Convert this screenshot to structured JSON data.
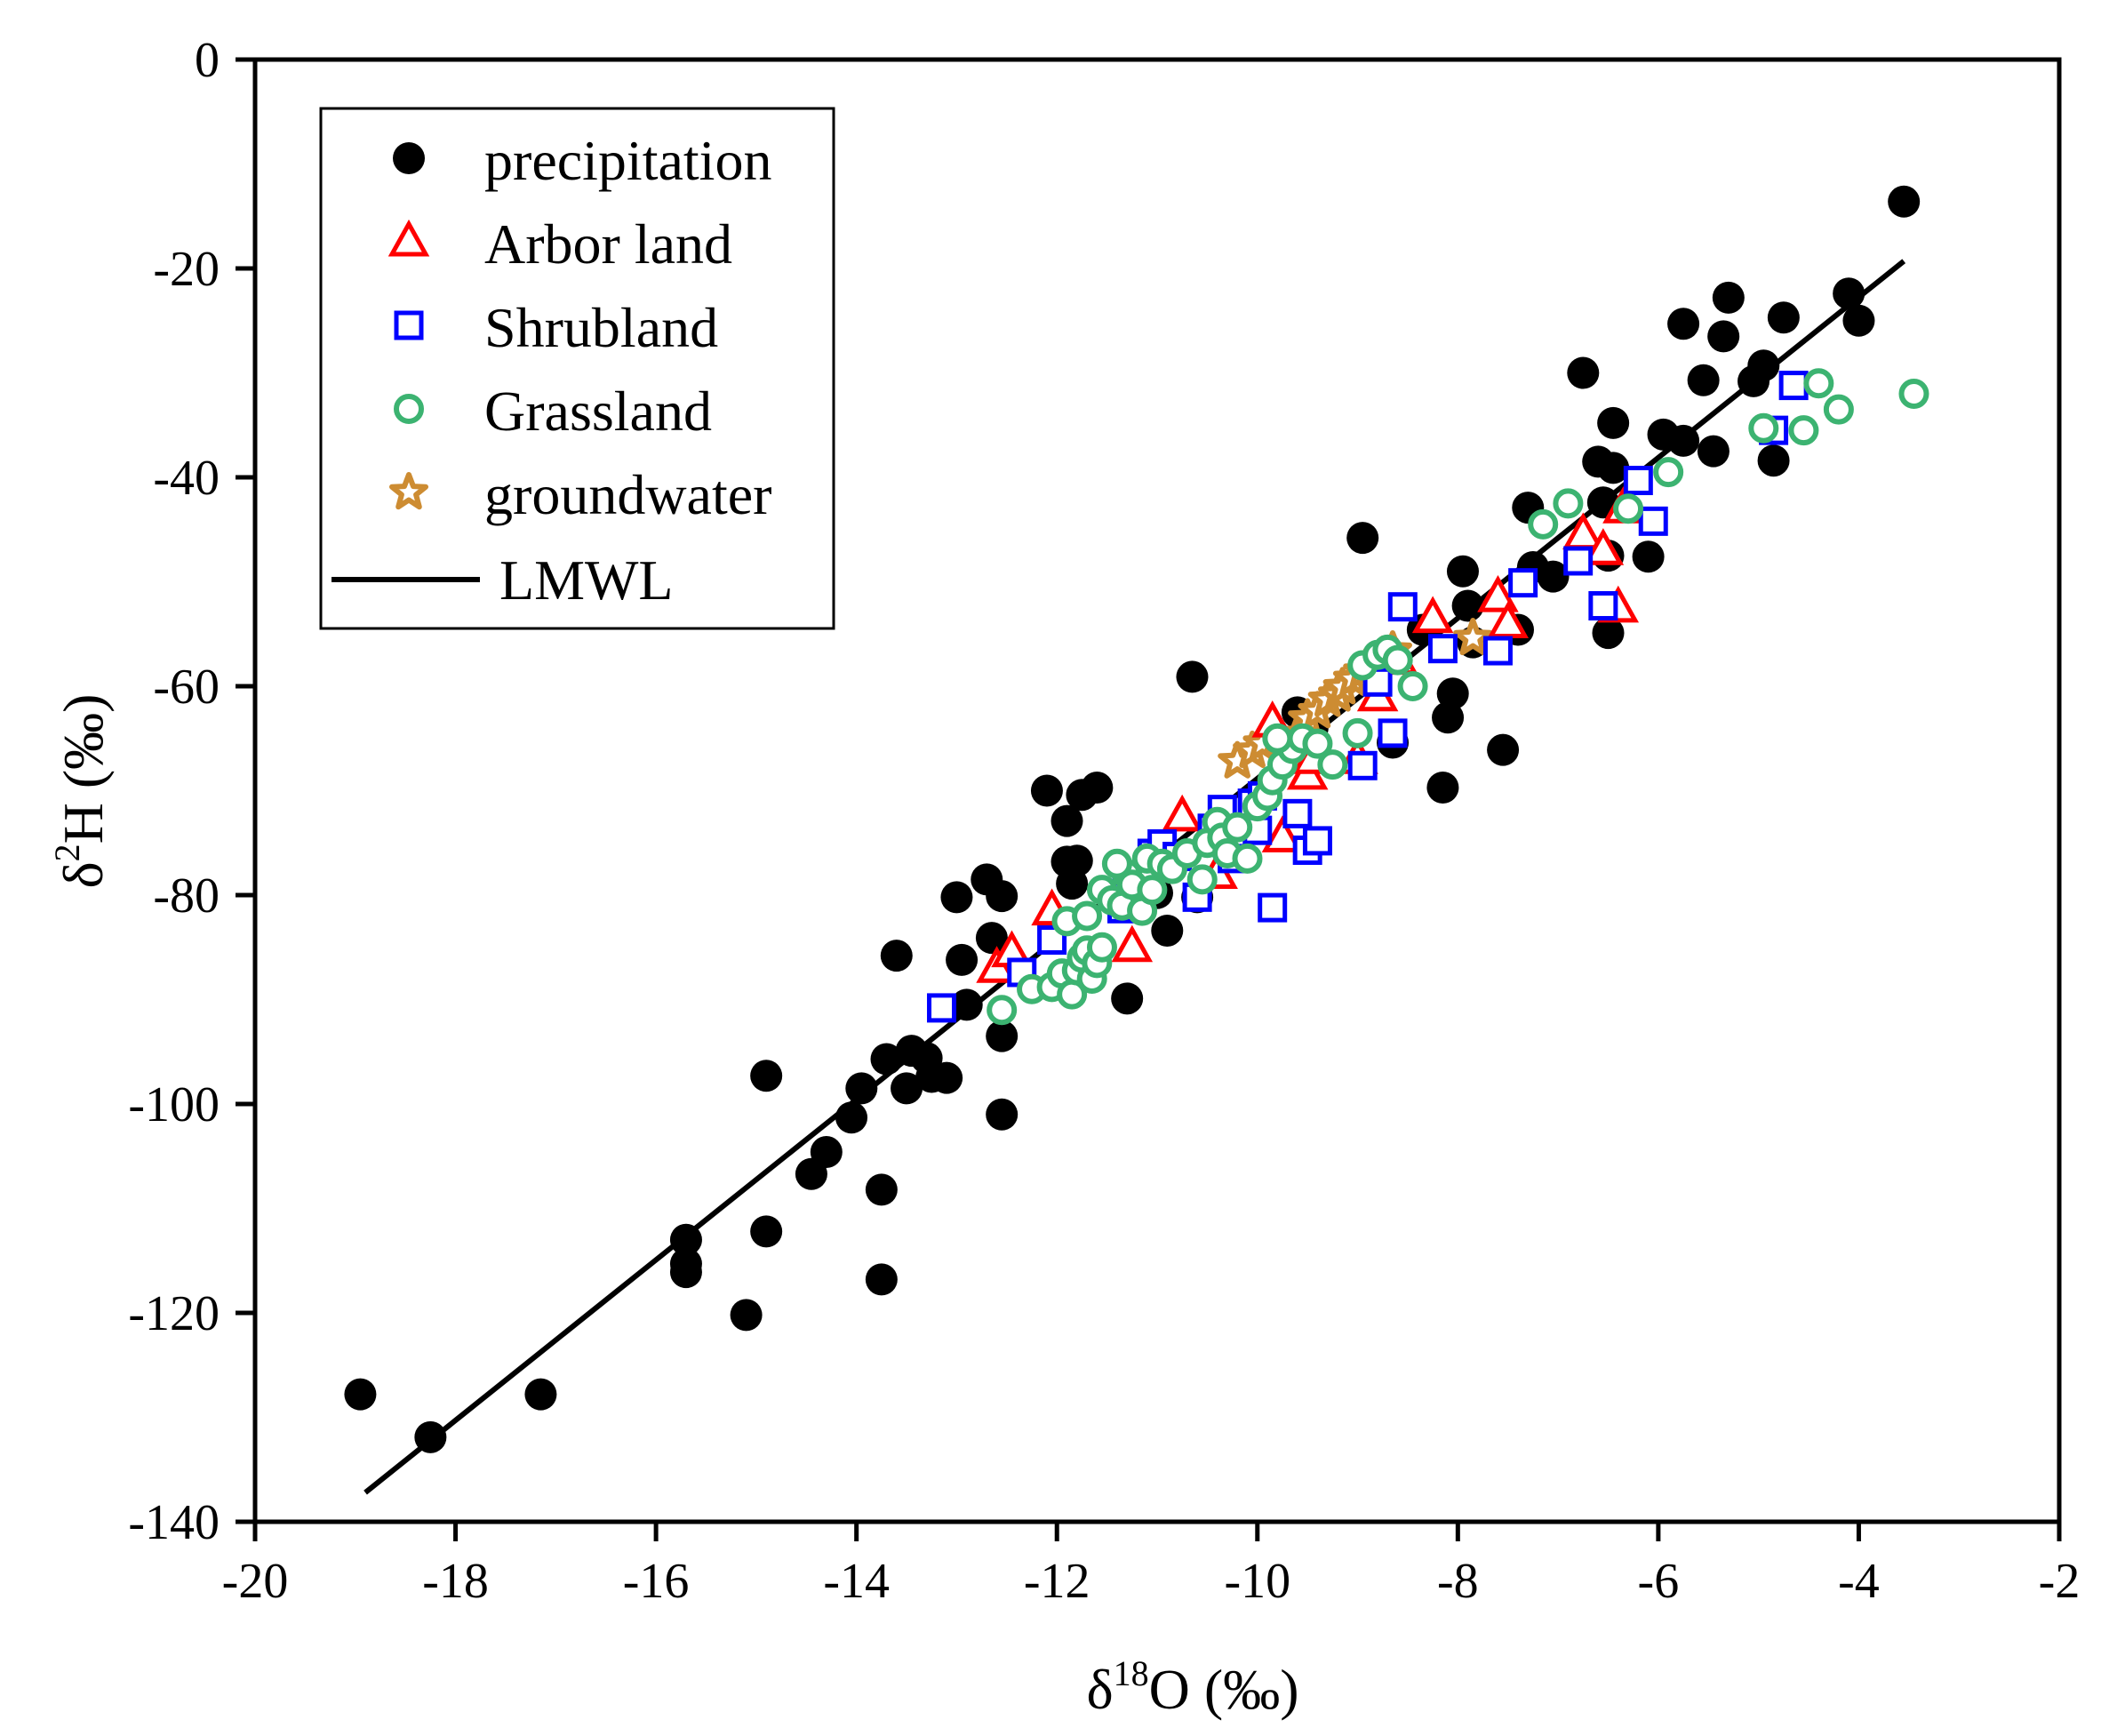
{
  "chart_data": {
    "type": "scatter",
    "xlabel": "δ18O (‰)",
    "xlabel_parts": {
      "symbol": "δ",
      "sup": "18",
      "rest": "O (‰)"
    },
    "ylabel": "δ2H (‰)",
    "ylabel_parts": {
      "symbol": "δ",
      "sup": "2",
      "rest": "H (‰)"
    },
    "xlim": [
      -20,
      -2
    ],
    "ylim": [
      -140,
      0
    ],
    "xticks": [
      -20,
      -18,
      -16,
      -14,
      -12,
      -10,
      -8,
      -6,
      -4,
      -2
    ],
    "yticks": [
      0,
      -20,
      -40,
      -60,
      -80,
      -100,
      -120,
      -140
    ],
    "xtick_labels": [
      "-20",
      "-18",
      "-16",
      "-14",
      "-12",
      "-10",
      "-8",
      "-6",
      "-4",
      "-2"
    ],
    "ytick_labels": [
      "0",
      "-20",
      "-40",
      "-60",
      "-80",
      "-100",
      "-120",
      "-140"
    ],
    "grid": false,
    "legend_position": "top-left",
    "series": [
      {
        "name": "precipitation",
        "marker": "filled-circle",
        "color": "#000000",
        "points": [
          [
            -18.95,
            -127.8
          ],
          [
            -18.25,
            -131.9
          ],
          [
            -17.15,
            -127.8
          ],
          [
            -15.7,
            -113
          ],
          [
            -15.7,
            -115.3
          ],
          [
            -15.7,
            -116.1
          ],
          [
            -15.1,
            -120.2
          ],
          [
            -14.9,
            -112.2
          ],
          [
            -14.9,
            -97.3
          ],
          [
            -14.45,
            -106.7
          ],
          [
            -14.3,
            -104.6
          ],
          [
            -14.05,
            -101.3
          ],
          [
            -13.95,
            -98.5
          ],
          [
            -13.75,
            -108.2
          ],
          [
            -13.75,
            -116.8
          ],
          [
            -13.7,
            -95.7
          ],
          [
            -13.6,
            -85.8
          ],
          [
            -13.5,
            -98.5
          ],
          [
            -13.45,
            -94.9
          ],
          [
            -13.3,
            -95.6
          ],
          [
            -13.25,
            -97.4
          ],
          [
            -13.1,
            -97.5
          ],
          [
            -13,
            -80.2
          ],
          [
            -12.95,
            -86.2
          ],
          [
            -12.9,
            -90.5
          ],
          [
            -12.7,
            -78.5
          ],
          [
            -12.65,
            -84.1
          ],
          [
            -12.55,
            -80.1
          ],
          [
            -12.55,
            -93.5
          ],
          [
            -12.55,
            -101
          ],
          [
            -12.1,
            -70
          ],
          [
            -11.9,
            -72.9
          ],
          [
            -11.9,
            -76.8
          ],
          [
            -11.85,
            -78.9
          ],
          [
            -11.8,
            -76.7
          ],
          [
            -11.75,
            -70.4
          ],
          [
            -11.6,
            -69.7
          ],
          [
            -11.3,
            -89.9
          ],
          [
            -11.15,
            -79.5
          ],
          [
            -11,
            -79.8
          ],
          [
            -10.9,
            -83.4
          ],
          [
            -10.65,
            -59.1
          ],
          [
            -10.6,
            -80.2
          ],
          [
            -9.6,
            -62.5
          ],
          [
            -9.45,
            -64
          ],
          [
            -8.95,
            -45.8
          ],
          [
            -8.65,
            -65.4
          ],
          [
            -8.35,
            -54.6
          ],
          [
            -8.15,
            -69.7
          ],
          [
            -8.1,
            -63
          ],
          [
            -8.05,
            -60.7
          ],
          [
            -7.95,
            -49
          ],
          [
            -7.9,
            -52.3
          ],
          [
            -7.85,
            -55.8
          ],
          [
            -7.55,
            -66.1
          ],
          [
            -7.4,
            -54.6
          ],
          [
            -7.3,
            -42.9
          ],
          [
            -7.25,
            -48.6
          ],
          [
            -7.05,
            -49.5
          ],
          [
            -6.75,
            -30
          ],
          [
            -6.6,
            -38.5
          ],
          [
            -6.55,
            -42.4
          ],
          [
            -6.5,
            -47.5
          ],
          [
            -6.5,
            -54.9
          ],
          [
            -6.45,
            -34.8
          ],
          [
            -6.45,
            -39.1
          ],
          [
            -6.1,
            -47.6
          ],
          [
            -5.95,
            -35.9
          ],
          [
            -5.75,
            -25.3
          ],
          [
            -5.75,
            -36.5
          ],
          [
            -5.55,
            -30.7
          ],
          [
            -5.45,
            -37.5
          ],
          [
            -5.35,
            -26.5
          ],
          [
            -5.3,
            -22.8
          ],
          [
            -5.05,
            -30.8
          ],
          [
            -4.95,
            -29.3
          ],
          [
            -4.85,
            -38.4
          ],
          [
            -4.75,
            -24.7
          ],
          [
            -4.1,
            -22.4
          ],
          [
            -4,
            -25
          ],
          [
            -3.55,
            -13.6
          ]
        ]
      },
      {
        "name": "Arbor land",
        "marker": "open-triangle",
        "color": "#ff0000",
        "points": [
          [
            -12.6,
            -87
          ],
          [
            -12.45,
            -85.5
          ],
          [
            -12.05,
            -81.5
          ],
          [
            -11.25,
            -85
          ],
          [
            -10.75,
            -72.5
          ],
          [
            -10.4,
            -78
          ],
          [
            -9.85,
            -63.5
          ],
          [
            -9.75,
            -74.5
          ],
          [
            -9.5,
            -68.5
          ],
          [
            -9.45,
            -67
          ],
          [
            -9,
            -67
          ],
          [
            -8.8,
            -61
          ],
          [
            -8.6,
            -57.5
          ],
          [
            -8.25,
            -53.5
          ],
          [
            -7.6,
            -51.5
          ],
          [
            -7.5,
            -54
          ],
          [
            -6.75,
            -45.5
          ],
          [
            -6.55,
            -47
          ],
          [
            -6.4,
            -52.5
          ],
          [
            -6.35,
            -43
          ]
        ]
      },
      {
        "name": "Shrubland",
        "marker": "open-square",
        "color": "#0000ff",
        "points": [
          [
            -13.15,
            -90.8
          ],
          [
            -12.35,
            -87.4
          ],
          [
            -12.05,
            -84.3
          ],
          [
            -11.35,
            -81.3
          ],
          [
            -11.3,
            -79.4
          ],
          [
            -11.15,
            -78.4
          ],
          [
            -11.05,
            -76
          ],
          [
            -10.95,
            -75.1
          ],
          [
            -10.8,
            -76.3
          ],
          [
            -10.6,
            -80.2
          ],
          [
            -10.45,
            -73.6
          ],
          [
            -10.35,
            -71.8
          ],
          [
            -10.25,
            -76.5
          ],
          [
            -10.05,
            -71.2
          ],
          [
            -10,
            -73.8
          ],
          [
            -9.95,
            -70.5
          ],
          [
            -9.85,
            -81.2
          ],
          [
            -9.6,
            -72.2
          ],
          [
            -9.5,
            -75.7
          ],
          [
            -9.4,
            -74.8
          ],
          [
            -8.95,
            -67.6
          ],
          [
            -8.8,
            -59.6
          ],
          [
            -8.65,
            -64.5
          ],
          [
            -8.55,
            -52.4
          ],
          [
            -8.15,
            -56.4
          ],
          [
            -7.6,
            -56.6
          ],
          [
            -7.35,
            -50.1
          ],
          [
            -6.8,
            -48
          ],
          [
            -6.55,
            -52.3
          ],
          [
            -6.2,
            -40.3
          ],
          [
            -6.05,
            -44.2
          ],
          [
            -4.85,
            -35.5
          ],
          [
            -4.65,
            -31.2
          ]
        ]
      },
      {
        "name": "Grassland",
        "marker": "open-circle",
        "color": "#3cb371",
        "points": [
          [
            -12.55,
            -91
          ],
          [
            -12.25,
            -89
          ],
          [
            -12.05,
            -88.8
          ],
          [
            -11.95,
            -87.5
          ],
          [
            -11.85,
            -89.5
          ],
          [
            -11.8,
            -87.2
          ],
          [
            -11.75,
            -86
          ],
          [
            -11.7,
            -85.3
          ],
          [
            -11.65,
            -88
          ],
          [
            -11.6,
            -86.5
          ],
          [
            -11.55,
            -85
          ],
          [
            -11.9,
            -82.5
          ],
          [
            -11.7,
            -82
          ],
          [
            -11.55,
            -79.5
          ],
          [
            -11.45,
            -80.5
          ],
          [
            -11.35,
            -81
          ],
          [
            -11.3,
            -78
          ],
          [
            -11.25,
            -79
          ],
          [
            -11.4,
            -77
          ],
          [
            -11.15,
            -81.5
          ],
          [
            -11.05,
            -79.5
          ],
          [
            -11.1,
            -76.5
          ],
          [
            -10.95,
            -77
          ],
          [
            -10.85,
            -77.5
          ],
          [
            -10.7,
            -76
          ],
          [
            -10.55,
            -78.5
          ],
          [
            -10.5,
            -75
          ],
          [
            -10.4,
            -73
          ],
          [
            -10.35,
            -74.5
          ],
          [
            -10.3,
            -76
          ],
          [
            -10.2,
            -73.5
          ],
          [
            -10.1,
            -76.5
          ],
          [
            -10,
            -71.5
          ],
          [
            -9.9,
            -70.5
          ],
          [
            -9.85,
            -69
          ],
          [
            -9.75,
            -67.5
          ],
          [
            -9.65,
            -66
          ],
          [
            -9.55,
            -65
          ],
          [
            -9.8,
            -65
          ],
          [
            -9.4,
            -65.5
          ],
          [
            -9.25,
            -67.5
          ],
          [
            -9,
            -64.5
          ],
          [
            -8.95,
            -58
          ],
          [
            -8.8,
            -57
          ],
          [
            -8.7,
            -56.5
          ],
          [
            -8.6,
            -57.5
          ],
          [
            -8.45,
            -60
          ],
          [
            -7.15,
            -44.5
          ],
          [
            -6.9,
            -42.5
          ],
          [
            -6.3,
            -43
          ],
          [
            -5.9,
            -39.5
          ],
          [
            -4.95,
            -35.3
          ],
          [
            -4.55,
            -35.5
          ],
          [
            -4.4,
            -31
          ],
          [
            -4.2,
            -33.5
          ],
          [
            -3.45,
            -32
          ]
        ]
      },
      {
        "name": "groundwater",
        "marker": "star",
        "color": "#cd8c32",
        "points": [
          [
            -10.2,
            -67.2
          ],
          [
            -10.05,
            -66.2
          ],
          [
            -9.95,
            -65.5
          ],
          [
            -9.8,
            -64.8
          ],
          [
            -9.6,
            -64.6
          ],
          [
            -9.5,
            -63.1
          ],
          [
            -9.4,
            -62.4
          ],
          [
            -9.3,
            -61.3
          ],
          [
            -9.2,
            -60.8
          ],
          [
            -9.15,
            -60.1
          ],
          [
            -9.05,
            -59.3
          ],
          [
            -8.95,
            -58.6
          ],
          [
            -8.85,
            -57.8
          ],
          [
            -8.75,
            -57.1
          ],
          [
            -8.65,
            -56.6
          ],
          [
            -7.85,
            -55.4
          ]
        ]
      }
    ],
    "lines": [
      {
        "name": "LMWL",
        "color": "#000000",
        "x": [
          -18.9,
          -3.55
        ],
        "y": [
          -137.2,
          -19.3
        ]
      }
    ]
  }
}
